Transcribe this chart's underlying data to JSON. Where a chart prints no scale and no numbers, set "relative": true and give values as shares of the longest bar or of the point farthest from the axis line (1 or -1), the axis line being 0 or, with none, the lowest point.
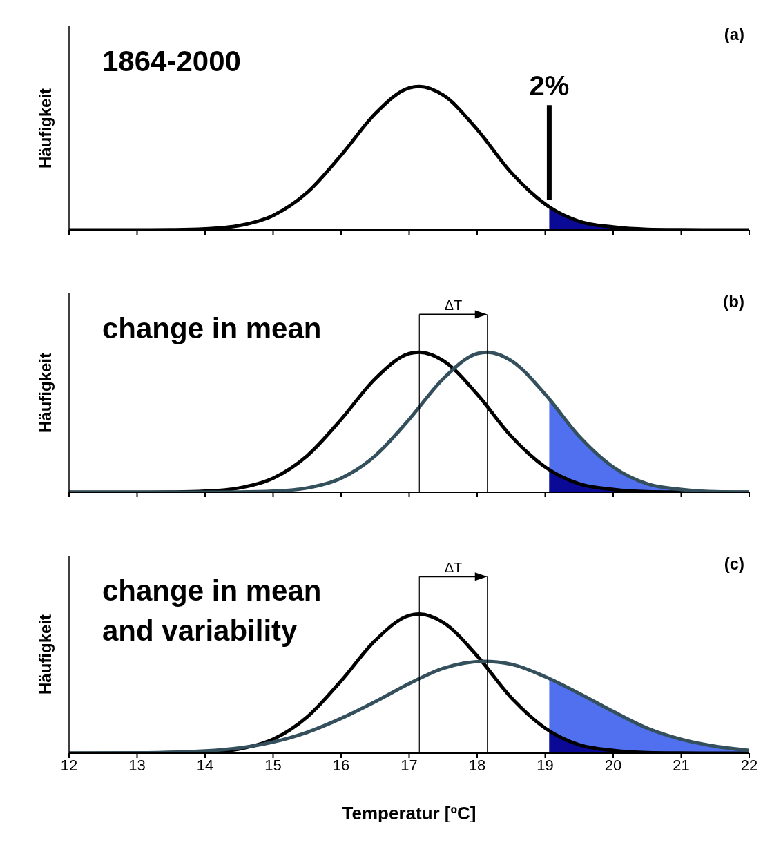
{
  "chart_data": [
    {
      "type": "line",
      "title": "(a)",
      "ylabel": "Häufigkeit",
      "relative": true,
      "tick_labels": false,
      "xlim": [
        12,
        22
      ],
      "xticks": [
        12,
        13,
        14,
        15,
        16,
        17,
        18,
        19,
        20,
        21,
        22
      ],
      "annotations": [
        "1864-2000",
        "2%"
      ],
      "ref_lines": [
        {
          "axis": "x",
          "value": 19.06,
          "color": "#000000"
        }
      ],
      "series": [
        {
          "color": "#000000",
          "x": [
            12,
            12.5,
            13,
            13.5,
            14,
            14.5,
            15,
            15.5,
            16,
            16.5,
            17,
            17.15,
            17.5,
            18,
            18.5,
            19,
            19.06,
            19.5,
            20,
            20.5,
            21,
            21.5,
            22
          ],
          "values": [
            0,
            0,
            0,
            0.001,
            0.007,
            0.03,
            0.1,
            0.26,
            0.52,
            0.81,
            0.99,
            1,
            0.94,
            0.7,
            0.4,
            0.18,
            0.16,
            0.06,
            0.02,
            0.004,
            0.001,
            0,
            0
          ]
        },
        {
          "type": "area",
          "color": "#0a0a96",
          "x": [
            19.06,
            19.5,
            20,
            20.5,
            21,
            21.5,
            22
          ],
          "values": [
            0.16,
            0.06,
            0.02,
            0.004,
            0.001,
            0,
            0
          ]
        }
      ]
    },
    {
      "type": "line",
      "title": "(b)",
      "ylabel": "Häufigkeit",
      "relative": true,
      "tick_labels": false,
      "xlim": [
        12,
        22
      ],
      "xticks": [
        12,
        13,
        14,
        15,
        16,
        17,
        18,
        19,
        20,
        21,
        22
      ],
      "annotations": [
        "change in mean",
        "ΔT"
      ],
      "ref_lines": [
        {
          "axis": "x",
          "value": 17.15,
          "color": "#000000"
        },
        {
          "axis": "x",
          "value": 18.15,
          "color": "#000000"
        }
      ],
      "series": [
        {
          "type": "area",
          "color": "#5070f0",
          "x": [
            19.06,
            19.5,
            20,
            20.5,
            21,
            21.5,
            22
          ],
          "values": [
            0.67,
            0.4,
            0.18,
            0.06,
            0.02,
            0.004,
            0.001
          ]
        },
        {
          "type": "area",
          "color": "#0a0a96",
          "x": [
            19.06,
            19.5,
            20,
            20.5,
            21,
            21.5,
            22
          ],
          "values": [
            0.16,
            0.06,
            0.02,
            0.004,
            0.001,
            0,
            0
          ]
        },
        {
          "color": "#000000",
          "x": [
            12,
            12.5,
            13,
            13.5,
            14,
            14.5,
            15,
            15.5,
            16,
            16.5,
            17,
            17.15,
            17.5,
            18,
            18.5,
            19,
            19.5,
            20,
            20.5,
            21,
            21.5,
            22
          ],
          "values": [
            0,
            0,
            0,
            0.001,
            0.007,
            0.03,
            0.1,
            0.26,
            0.52,
            0.81,
            0.99,
            1,
            0.94,
            0.7,
            0.4,
            0.18,
            0.06,
            0.02,
            0.004,
            0.001,
            0,
            0
          ]
        },
        {
          "color": "#34505c",
          "x": [
            12,
            13,
            14,
            14.5,
            15,
            15.5,
            16,
            16.5,
            17,
            17.5,
            18,
            18.15,
            18.5,
            19,
            19.5,
            20,
            20.5,
            21,
            21.5,
            22
          ],
          "values": [
            0,
            0,
            0,
            0.001,
            0.007,
            0.03,
            0.1,
            0.26,
            0.52,
            0.81,
            0.99,
            1,
            0.94,
            0.7,
            0.4,
            0.18,
            0.06,
            0.02,
            0.004,
            0.001
          ]
        }
      ]
    },
    {
      "type": "line",
      "title": "(c)",
      "ylabel": "Häufigkeit",
      "xlabel": "Temperatur [ºC]",
      "relative": true,
      "tick_labels": "x",
      "xlim": [
        12,
        22
      ],
      "xticks": [
        12,
        13,
        14,
        15,
        16,
        17,
        18,
        19,
        20,
        21,
        22
      ],
      "annotations": [
        "change in mean and variability",
        "ΔT"
      ],
      "ref_lines": [
        {
          "axis": "x",
          "value": 17.15,
          "color": "#000000"
        },
        {
          "axis": "x",
          "value": 18.15,
          "color": "#000000"
        }
      ],
      "series": [
        {
          "type": "area",
          "color": "#5070f0",
          "x": [
            19.06,
            19.5,
            20,
            20.5,
            21,
            21.5,
            22
          ],
          "values": [
            0.54,
            0.43,
            0.3,
            0.18,
            0.1,
            0.05,
            0.02
          ]
        },
        {
          "type": "area",
          "color": "#0a0a96",
          "x": [
            19.06,
            19.5,
            20,
            20.5,
            21,
            21.5,
            22
          ],
          "values": [
            0.16,
            0.06,
            0.02,
            0.004,
            0.001,
            0,
            0
          ]
        },
        {
          "color": "#000000",
          "x": [
            12,
            12.5,
            13,
            13.5,
            14,
            14.5,
            15,
            15.5,
            16,
            16.5,
            17,
            17.15,
            17.5,
            18,
            18.5,
            19,
            19.5,
            20,
            20.5,
            21,
            21.5,
            22
          ],
          "values": [
            0,
            0,
            0,
            0.001,
            0.007,
            0.03,
            0.1,
            0.26,
            0.52,
            0.81,
            0.99,
            1,
            0.94,
            0.7,
            0.4,
            0.18,
            0.06,
            0.02,
            0.004,
            0.001,
            0,
            0
          ]
        },
        {
          "color": "#34505c",
          "x": [
            12,
            13,
            14,
            15,
            15.5,
            16,
            16.5,
            17,
            17.5,
            18.1,
            18.5,
            19,
            19.5,
            20,
            20.5,
            21,
            21.5,
            22
          ],
          "values": [
            0,
            0.002,
            0.016,
            0.08,
            0.15,
            0.25,
            0.37,
            0.5,
            0.61,
            0.66,
            0.64,
            0.55,
            0.43,
            0.3,
            0.18,
            0.1,
            0.05,
            0.02
          ]
        }
      ]
    }
  ]
}
